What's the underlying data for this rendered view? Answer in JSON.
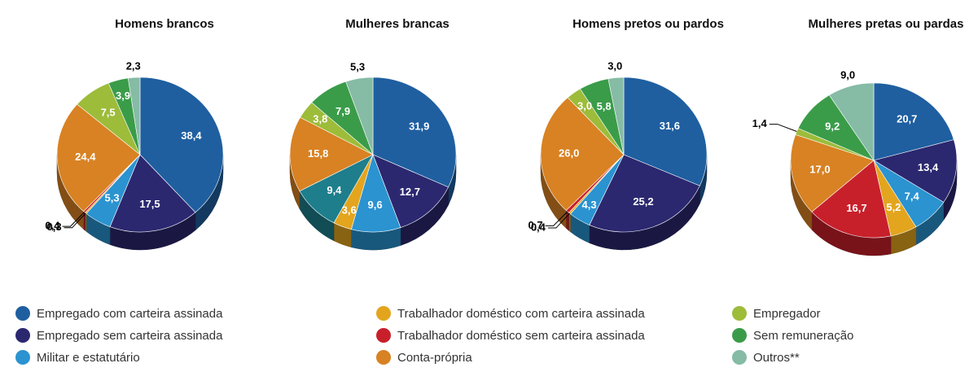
{
  "chart_data": [
    {
      "type": "pie",
      "title": "Homens brancos",
      "values": [
        38.4,
        17.5,
        5.3,
        0.3,
        0.4,
        24.4,
        7.5,
        3.9,
        2.3
      ],
      "value_labels": [
        "38,4",
        "17,5",
        "5,3",
        "0,3",
        "0,4",
        "24,4",
        "7,5",
        "3,9",
        "2,3"
      ],
      "colors": [
        "#1f5fa0",
        "#2b2870",
        "#2a93d0",
        "#e3a51e",
        "#c8202b",
        "#d88223",
        "#9dbc3a",
        "#3a9c49",
        "#86bba5"
      ]
    },
    {
      "type": "pie",
      "title": "Mulheres brancas",
      "values": [
        31.9,
        12.7,
        9.6,
        3.6,
        9.4,
        15.8,
        3.8,
        7.9,
        5.3
      ],
      "value_labels": [
        "31,9",
        "12,7",
        "9,6",
        "3,6",
        "9,4",
        "15,8",
        "3,8",
        "7,9",
        "5,3"
      ],
      "colors": [
        "#1f5fa0",
        "#2b2870",
        "#2a93d0",
        "#e3a51e",
        "#1e7e8c",
        "#d88223",
        "#9dbc3a",
        "#3a9c49",
        "#86bba5"
      ]
    },
    {
      "type": "pie",
      "title": "Homens pretos ou pardos",
      "values": [
        31.6,
        25.2,
        4.3,
        0.4,
        0.7,
        26.0,
        3.0,
        5.8,
        3.0
      ],
      "value_labels": [
        "31,6",
        "25,2",
        "4,3",
        "0,4",
        "0,7",
        "26,0",
        "3,0",
        "5,8",
        "3,0"
      ],
      "colors": [
        "#1f5fa0",
        "#2b2870",
        "#2a93d0",
        "#e3a51e",
        "#c8202b",
        "#d88223",
        "#9dbc3a",
        "#3a9c49",
        "#86bba5"
      ]
    },
    {
      "type": "pie",
      "title": "Mulheres pretas ou pardas",
      "values": [
        20.7,
        13.4,
        7.4,
        5.2,
        16.7,
        17.0,
        1.4,
        9.2,
        9.0
      ],
      "value_labels": [
        "20,7",
        "13,4",
        "7,4",
        "5,2",
        "16,7",
        "17,0",
        "1,4",
        "9,2",
        "9,0"
      ],
      "colors": [
        "#1f5fa0",
        "#2b2870",
        "#2a93d0",
        "#e3a51e",
        "#c8202b",
        "#d88223",
        "#9dbc3a",
        "#3a9c49",
        "#86bba5"
      ]
    }
  ],
  "legend": [
    {
      "name": "Empregado com carteira assinada",
      "color": "#1f5fa0"
    },
    {
      "name": "Empregado sem carteira assinada",
      "color": "#2b2870"
    },
    {
      "name": "Militar e estatutário",
      "color": "#2a93d0"
    },
    {
      "name": "Trabalhador doméstico com carteira assinada",
      "color": "#e3a51e"
    },
    {
      "name": "Trabalhador doméstico sem carteira assinada",
      "color": "#c8202b"
    },
    {
      "name": "Conta-própria",
      "color": "#d88223"
    },
    {
      "name": "Empregador",
      "color": "#9dbc3a"
    },
    {
      "name": "Sem remuneração",
      "color": "#3a9c49"
    },
    {
      "name": "Outros**",
      "color": "#86bba5"
    }
  ]
}
